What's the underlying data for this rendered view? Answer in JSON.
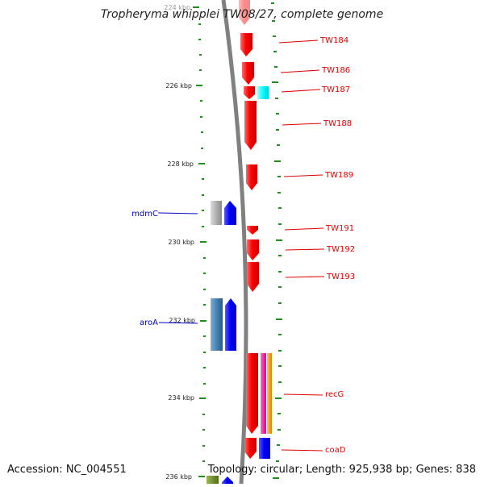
{
  "title": "Tropheryma whipplei TW08/27, complete genome",
  "footer": {
    "accession": "Accession: NC_004551",
    "summary": "Topology: circular; Length: 925,938 bp; Genes: 838"
  },
  "axis_labels": [
    "224 kbp",
    "226 kbp",
    "228 kbp",
    "230 kbp",
    "232 kbp",
    "234 kbp",
    "236 kbp"
  ],
  "genes": [
    {
      "label": "TW184",
      "color": "#e00000"
    },
    {
      "label": "TW186",
      "color": "#e00000"
    },
    {
      "label": "TW187",
      "color": "#e00000"
    },
    {
      "label": "TW188",
      "color": "#e00000"
    },
    {
      "label": "TW189",
      "color": "#e00000"
    },
    {
      "label": "TW191",
      "color": "#e00000"
    },
    {
      "label": "TW192",
      "color": "#e00000"
    },
    {
      "label": "TW193",
      "color": "#e00000"
    },
    {
      "label": "recG",
      "color": "#e00000"
    },
    {
      "label": "coaD",
      "color": "#e00000"
    },
    {
      "label": "mdmC",
      "color": "#0000c0"
    },
    {
      "label": "aroA",
      "color": "#0000c0"
    }
  ],
  "colors": {
    "red": "#ff0000",
    "blue": "#0000ff",
    "cyan": "#00ffff",
    "steel": "#4682b4",
    "gray": "#aaaaaa",
    "magenta": "#ff00aa",
    "orange": "#ff9900",
    "olive": "#6b8e23",
    "tick": "#228b22",
    "backbone": "#808080"
  }
}
